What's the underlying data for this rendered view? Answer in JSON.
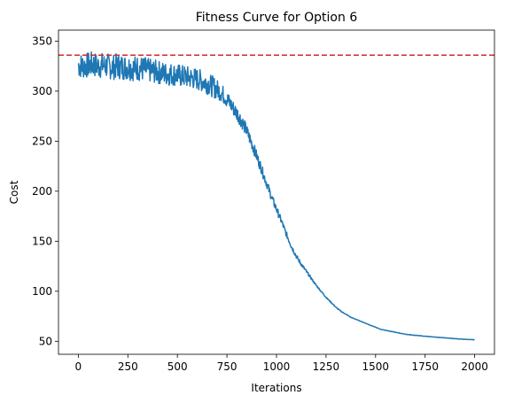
{
  "chart_data": {
    "type": "line",
    "title": "Fitness Curve for Option 6",
    "xlabel": "Iterations",
    "ylabel": "Cost",
    "xlim": [
      -100,
      2100
    ],
    "ylim": [
      37,
      361
    ],
    "xticks": [
      0,
      250,
      500,
      750,
      1000,
      1250,
      1500,
      1750,
      2000
    ],
    "yticks": [
      50,
      100,
      150,
      200,
      250,
      300,
      350
    ],
    "grid": false,
    "series": [
      {
        "color": "#1f77b4",
        "x": [
          0,
          25,
          50,
          75,
          100,
          125,
          150,
          175,
          200,
          225,
          250,
          275,
          300,
          325,
          350,
          375,
          400,
          425,
          450,
          475,
          500,
          525,
          550,
          575,
          600,
          625,
          650,
          675,
          700,
          725,
          750,
          775,
          800,
          825,
          850,
          875,
          900,
          925,
          950,
          975,
          1000,
          1025,
          1050,
          1075,
          1100,
          1125,
          1150,
          1175,
          1200,
          1225,
          1250,
          1275,
          1300,
          1325,
          1350,
          1375,
          1400,
          1425,
          1450,
          1475,
          1500,
          1525,
          1550,
          1575,
          1600,
          1625,
          1650,
          1675,
          1700,
          1725,
          1750,
          1775,
          1800,
          1825,
          1850,
          1875,
          1900,
          1925,
          1950,
          1975,
          2000
        ],
        "y": [
          326,
          325,
          326,
          327,
          325,
          326,
          325,
          324,
          325,
          324,
          324,
          323,
          323,
          322,
          321,
          320,
          319,
          318,
          317,
          317,
          316,
          315,
          314,
          313,
          312,
          310,
          308,
          305,
          302,
          298,
          292,
          285,
          278,
          270,
          260,
          248,
          235,
          222,
          208,
          194,
          182,
          170,
          157,
          145,
          135,
          127,
          120,
          113,
          106,
          100,
          94,
          89,
          84,
          80,
          77,
          74,
          72,
          70,
          68,
          66,
          64,
          62,
          61,
          60,
          59,
          58,
          57,
          56.5,
          56,
          55.5,
          55,
          54.6,
          54.2,
          53.8,
          53.4,
          53,
          52.6,
          52.3,
          52,
          51.7,
          51.5
        ]
      }
    ],
    "reference_lines": [
      {
        "axis": "y",
        "value": 336,
        "color": "#d62728",
        "style": "dashed"
      }
    ]
  }
}
